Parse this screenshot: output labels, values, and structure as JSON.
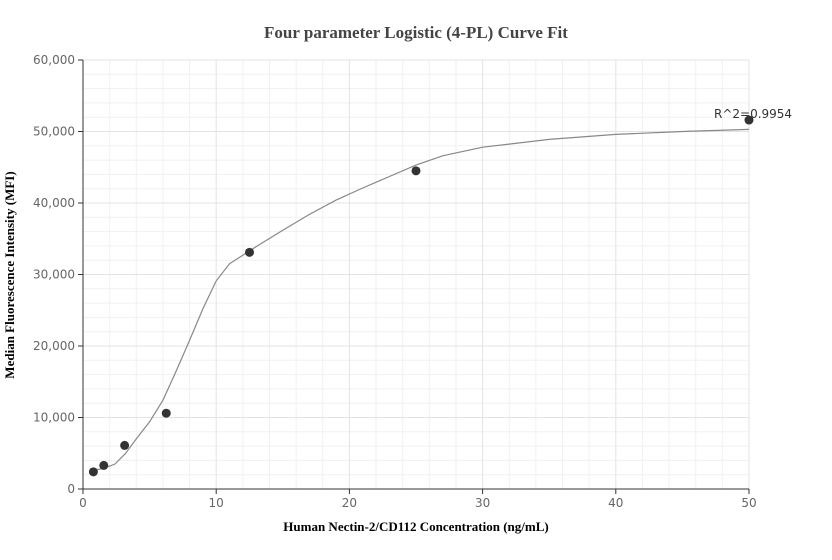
{
  "chart_data": {
    "type": "scatter",
    "title": "Four parameter Logistic (4-PL) Curve Fit",
    "xlabel": "Human Nectin-2/CD112 Concentration (ng/mL)",
    "ylabel": "Median Fluorescence Intensity (MFI)",
    "xlim": [
      0,
      50
    ],
    "ylim": [
      0,
      60000
    ],
    "x_ticks": [
      0,
      10,
      20,
      30,
      40,
      50
    ],
    "x_tick_labels": [
      "0",
      "10",
      "20",
      "30",
      "40",
      "50"
    ],
    "y_ticks": [
      0,
      10000,
      20000,
      30000,
      40000,
      50000,
      60000
    ],
    "y_tick_labels": [
      "0",
      "10,000",
      "20,000",
      "30,000",
      "40,000",
      "50,000",
      "60,000"
    ],
    "grid": true,
    "points": {
      "x": [
        0.78,
        1.56,
        3.125,
        6.25,
        12.5,
        25,
        50
      ],
      "y": [
        2400,
        3300,
        6100,
        10600,
        33100,
        44500,
        51600
      ]
    },
    "fit_curve": {
      "x": [
        0.78,
        1.56,
        2.4,
        3.2,
        4.0,
        5.0,
        6.0,
        7.0,
        8.0,
        9.0,
        10.0,
        11.0,
        12.0,
        13.0,
        15.0,
        17.0,
        19.0,
        21.0,
        23.0,
        25.0,
        27.0,
        30.0,
        35.0,
        40.0,
        45.0,
        50.0
      ],
      "y": [
        2600,
        2900,
        3500,
        5000,
        7000,
        9400,
        12400,
        16500,
        20800,
        25200,
        29100,
        31500,
        32700,
        33900,
        36200,
        38400,
        40400,
        42100,
        43700,
        45300,
        46600,
        47800,
        48900,
        49600,
        50000,
        50300
      ]
    },
    "annotation": "R^2=0.9954"
  }
}
